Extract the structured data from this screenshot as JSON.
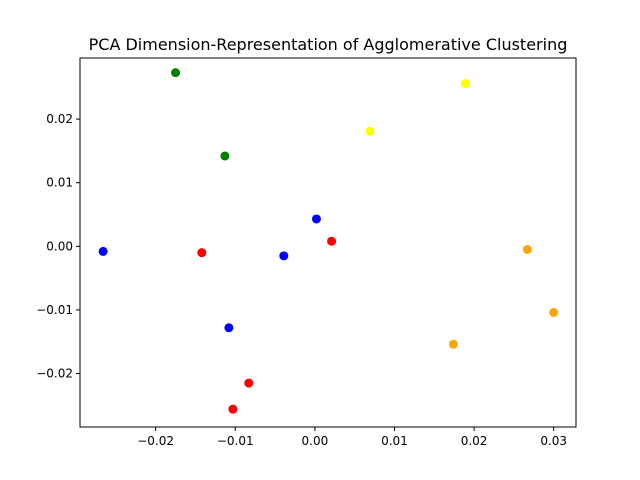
{
  "chart_data": {
    "type": "scatter",
    "title": "PCA Dimension-Representation of Agglomerative Clustering",
    "xlabel": "",
    "ylabel": "",
    "xlim": [
      -0.0295,
      0.0328
    ],
    "ylim": [
      -0.0284,
      0.0296
    ],
    "xticks": [
      -0.02,
      -0.01,
      0.0,
      0.01,
      0.02,
      0.03
    ],
    "xtick_labels": [
      "−0.02",
      "−0.01",
      "0.00",
      "0.01",
      "0.02",
      "0.03"
    ],
    "yticks": [
      -0.02,
      -0.01,
      0.0,
      0.01,
      0.02
    ],
    "ytick_labels": [
      "−0.02",
      "−0.01",
      "0.00",
      "0.01",
      "0.02"
    ],
    "grid": false,
    "legend": "none",
    "series": [
      {
        "color": "#0000ff",
        "points": [
          [
            -0.0266,
            -0.0008
          ],
          [
            -0.0108,
            -0.0128
          ],
          [
            -0.0039,
            -0.0015
          ],
          [
            0.0002,
            0.0043
          ]
        ]
      },
      {
        "color": "#ff0000",
        "points": [
          [
            -0.0142,
            -0.001
          ],
          [
            0.0021,
            0.0008
          ],
          [
            -0.0083,
            -0.0215
          ],
          [
            -0.0103,
            -0.0256
          ]
        ]
      },
      {
        "color": "#008000",
        "points": [
          [
            -0.0175,
            0.0273
          ],
          [
            -0.0113,
            0.0142
          ]
        ]
      },
      {
        "color": "#ffff00",
        "points": [
          [
            0.0069,
            0.0181
          ],
          [
            0.0189,
            0.0256
          ]
        ]
      },
      {
        "color": "#ffa500",
        "points": [
          [
            0.0267,
            -0.0005
          ],
          [
            0.03,
            -0.0104
          ],
          [
            0.0174,
            -0.0154
          ]
        ]
      }
    ]
  }
}
